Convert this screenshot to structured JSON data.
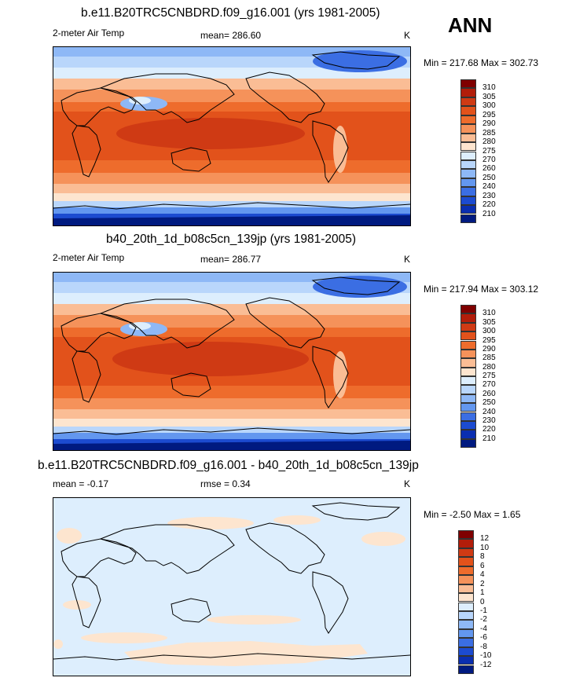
{
  "season_label": "ANN",
  "panels": [
    {
      "title": "b.e11.B20TRC5CNBDRD.f09_g16.001 (yrs 1981-2005)",
      "left_label": "2-meter Air Temp",
      "center_label": "mean= 286.60",
      "units": "K",
      "minmax": "Min = 217.68 Max = 302.73",
      "colorbar": {
        "labels": [
          "310",
          "305",
          "300",
          "295",
          "290",
          "285",
          "280",
          "275",
          "270",
          "260",
          "250",
          "240",
          "230",
          "220",
          "210"
        ],
        "colors": [
          "#7f0000",
          "#b21d0a",
          "#cf3a14",
          "#e2521b",
          "#ee6c2c",
          "#f5925a",
          "#fabd95",
          "#fde5cf",
          "#ddeefd",
          "#b9d6fb",
          "#8eb8f6",
          "#6397ef",
          "#3b6ee3",
          "#1c4bd0",
          "#0a2eb0",
          "#001a80"
        ]
      }
    },
    {
      "title": "b40_20th_1d_b08c5cn_139jp (yrs 1981-2005)",
      "left_label": "2-meter Air Temp",
      "center_label": "mean= 286.77",
      "units": "K",
      "minmax": "Min = 217.94 Max = 303.12",
      "colorbar": {
        "labels": [
          "310",
          "305",
          "300",
          "295",
          "290",
          "285",
          "280",
          "275",
          "270",
          "260",
          "250",
          "240",
          "230",
          "220",
          "210"
        ],
        "colors": [
          "#7f0000",
          "#b21d0a",
          "#cf3a14",
          "#e2521b",
          "#ee6c2c",
          "#f5925a",
          "#fabd95",
          "#fde5cf",
          "#ddeefd",
          "#b9d6fb",
          "#8eb8f6",
          "#6397ef",
          "#3b6ee3",
          "#1c4bd0",
          "#0a2eb0",
          "#001a80"
        ]
      }
    },
    {
      "title": "b.e11.B20TRC5CNBDRD.f09_g16.001 - b40_20th_1d_b08c5cn_139jp",
      "left_label": "mean =  -0.17",
      "center_label": "rmse =   0.34",
      "units": "K",
      "minmax": "Min =  -2.50 Max =   1.65",
      "colorbar": {
        "labels": [
          "12",
          "10",
          "8",
          "6",
          "4",
          "2",
          "1",
          "0",
          "-1",
          "-2",
          "-4",
          "-6",
          "-8",
          "-10",
          "-12"
        ],
        "colors": [
          "#7f0000",
          "#b21d0a",
          "#cf3a14",
          "#e2521b",
          "#ee6c2c",
          "#f5925a",
          "#fabd95",
          "#fde5cf",
          "#ddeefd",
          "#b9d6fb",
          "#8eb8f6",
          "#6397ef",
          "#3b6ee3",
          "#1c4bd0",
          "#0a2eb0",
          "#001a80"
        ]
      }
    }
  ]
}
